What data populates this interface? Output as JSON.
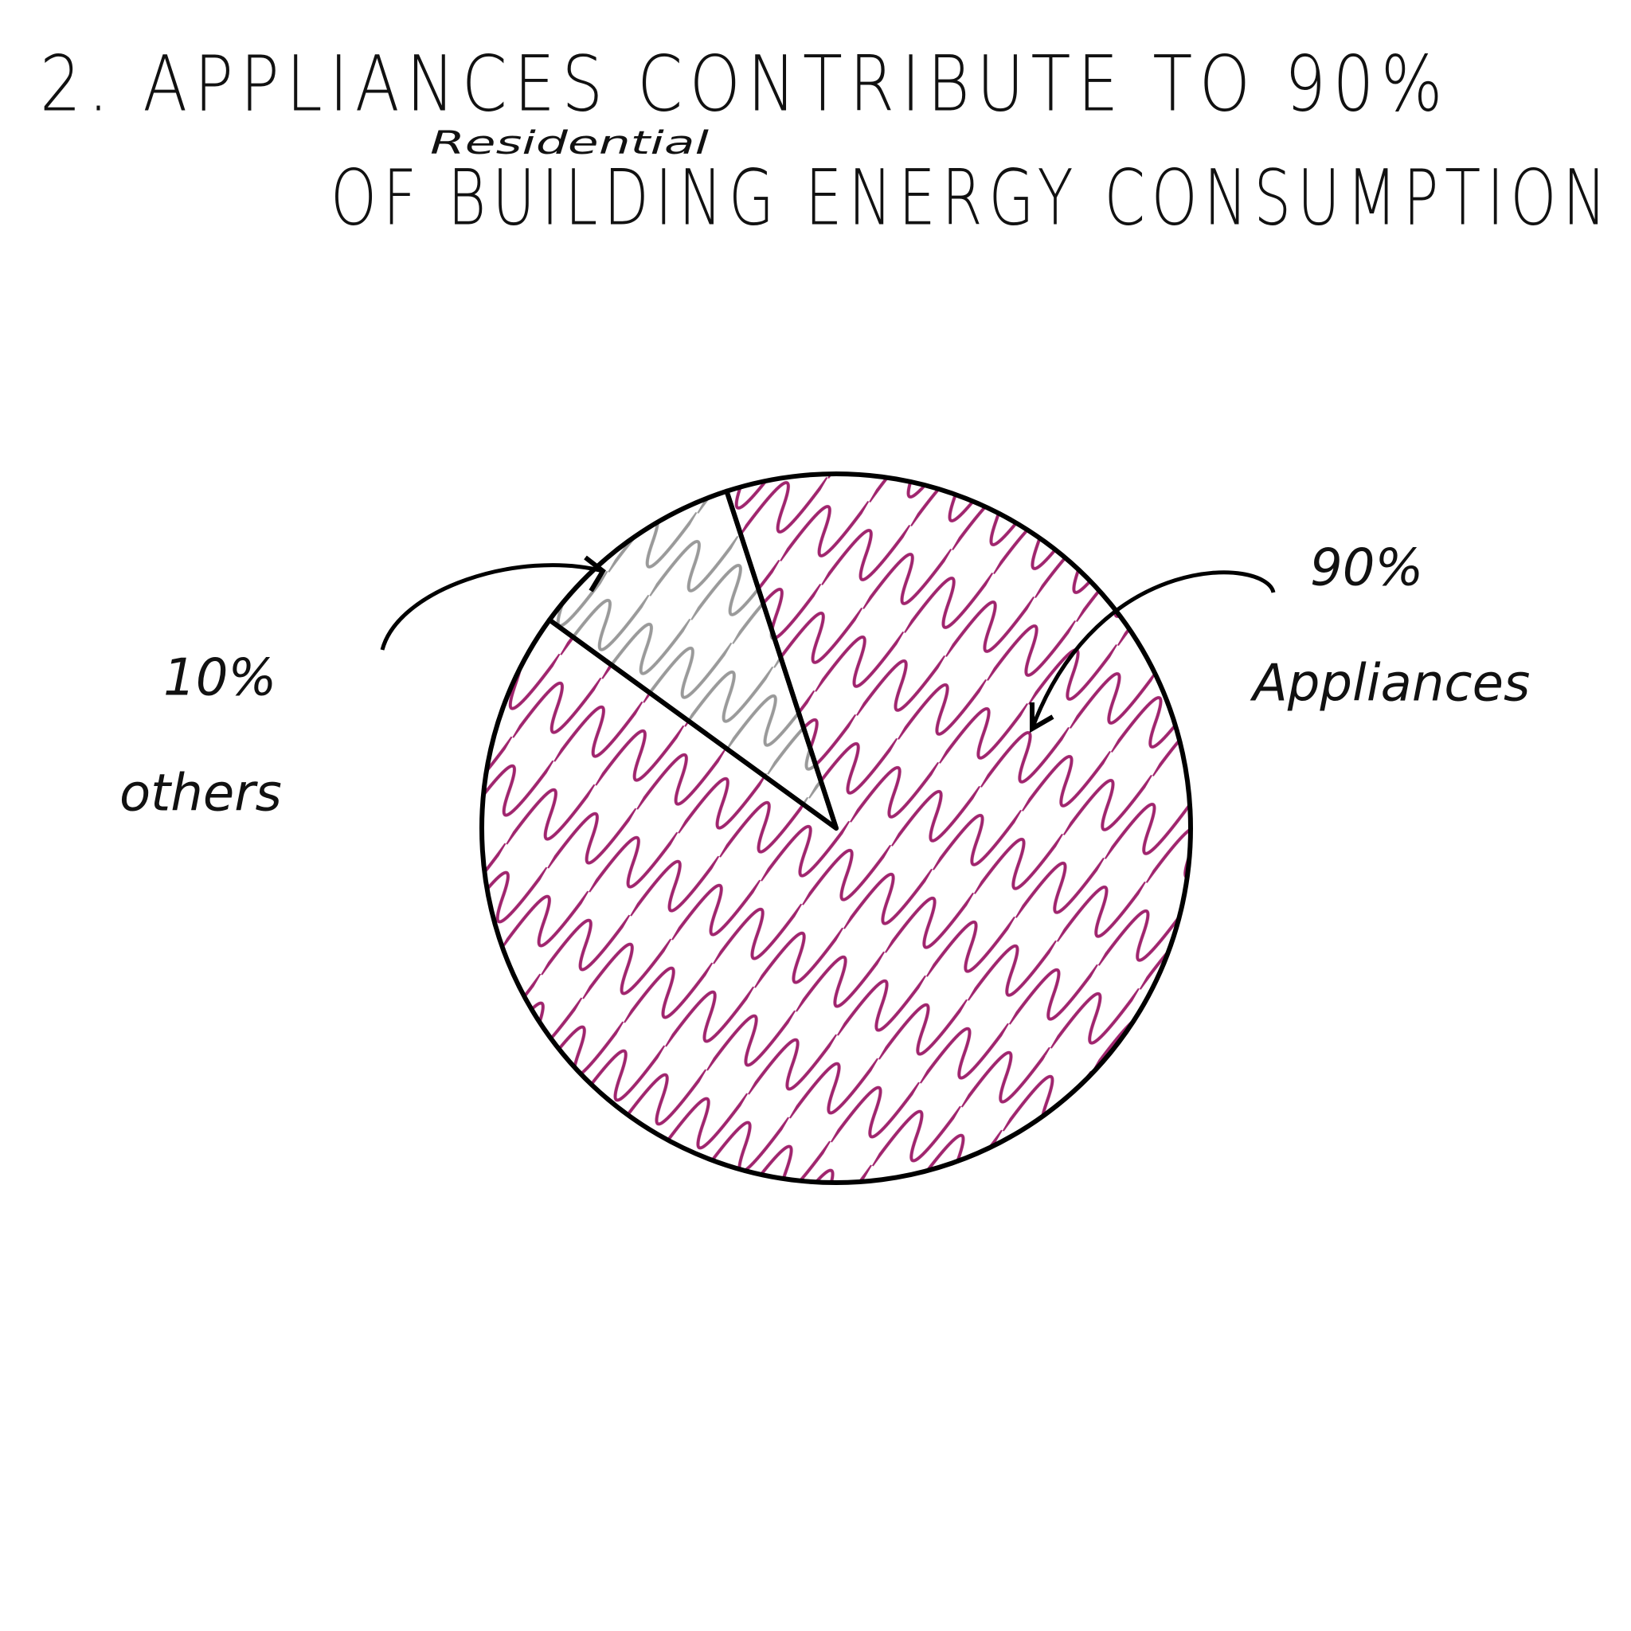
{
  "chart_data": {
    "type": "pie",
    "title": "2. APPLIANCES CONTRIBUTE TO 90%",
    "subtitle": "OF BUILDING ENERGY CONSUMPTION",
    "annotations": [
      "Residential"
    ],
    "categories": [
      "others",
      "Appliances"
    ],
    "values": [
      10,
      90
    ],
    "value_labels": [
      "10%",
      "90%"
    ],
    "colors": [
      "#9a9a9a",
      "#a0256e"
    ]
  }
}
